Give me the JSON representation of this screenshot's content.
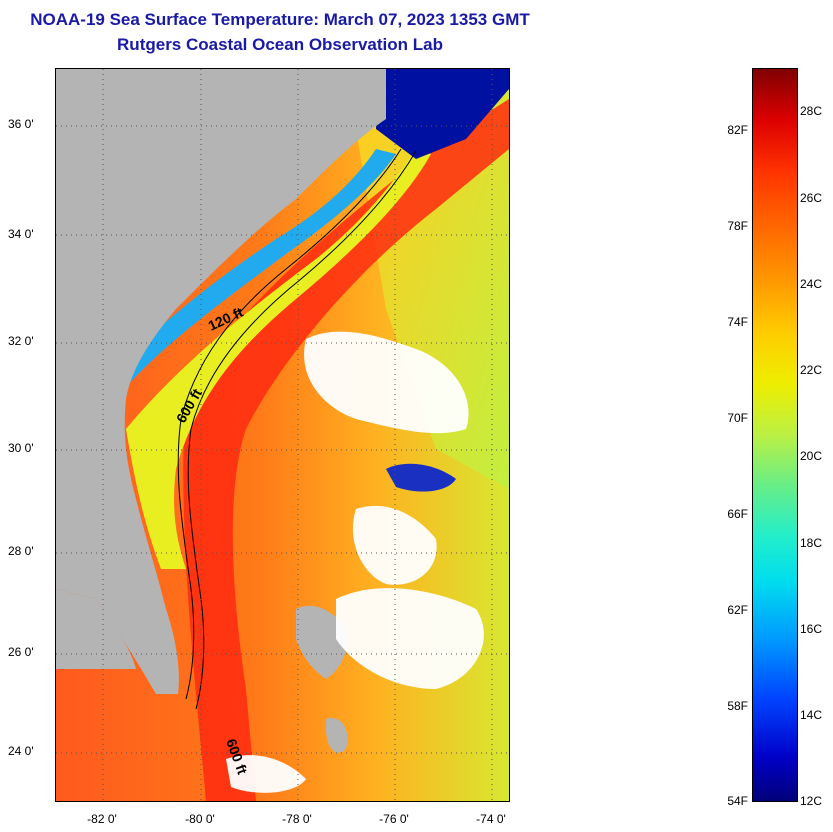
{
  "header": {
    "title": "NOAA-19 Sea Surface Temperature:  March 07, 2023 1353 GMT",
    "subtitle": "Rutgers Coastal Ocean Observation Lab"
  },
  "map": {
    "latitude_labels": [
      "36 0'",
      "34 0'",
      "32 0'",
      "30 0'",
      "28 0'",
      "26 0'",
      "24 0'"
    ],
    "longitude_labels": [
      "-82 0'",
      "-80 0'",
      "-78 0'",
      "-76 0'",
      "-74 0'"
    ],
    "contour_labels": [
      "120 ft",
      "600 ft",
      "600 ft"
    ]
  },
  "colorbar": {
    "fahrenheit_labels": [
      "82F",
      "78F",
      "74F",
      "70F",
      "66F",
      "62F",
      "58F",
      "54F"
    ],
    "celsius_labels": [
      "28C",
      "26C",
      "24C",
      "22C",
      "20C",
      "18C",
      "16C",
      "14C",
      "12C"
    ]
  },
  "colors": {
    "land": "#b4b4b4",
    "cloud": "#ffffff",
    "title": "#1a1aa6"
  }
}
